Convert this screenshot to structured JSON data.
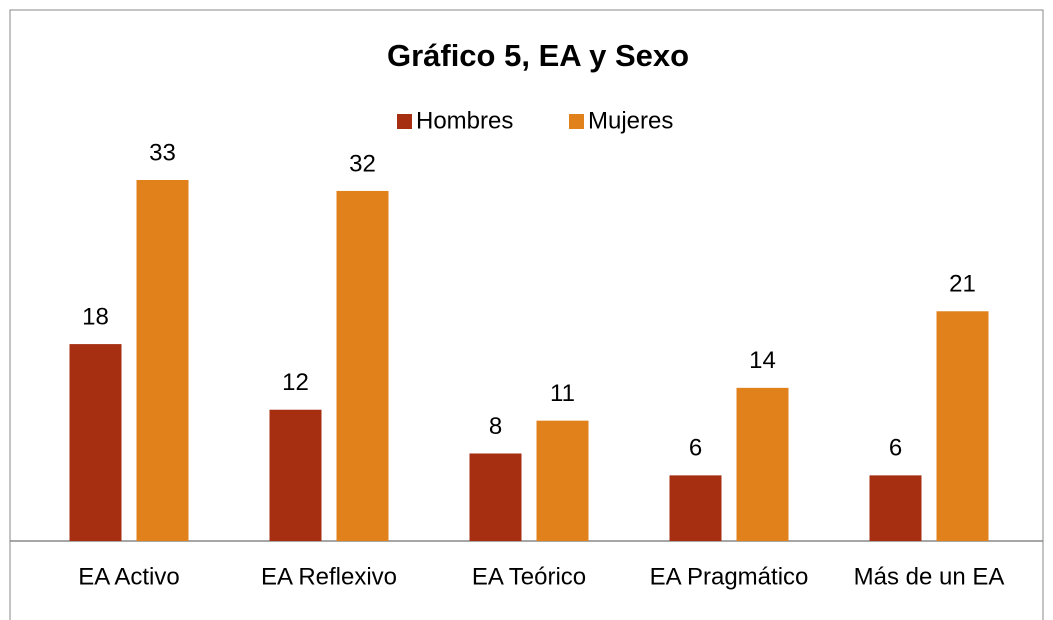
{
  "chart_data": {
    "type": "bar",
    "title": "Gráfico 5, EA y Sexo",
    "categories": [
      "EA Activo",
      "EA Reflexivo",
      "EA Teórico",
      "EA Pragmático",
      "Más de un EA"
    ],
    "series": [
      {
        "name": "Hombres",
        "color": "#a62f12",
        "values": [
          18,
          12,
          8,
          6,
          6
        ]
      },
      {
        "name": "Mujeres",
        "color": "#e0811c",
        "values": [
          33,
          32,
          11,
          14,
          21
        ]
      }
    ]
  }
}
